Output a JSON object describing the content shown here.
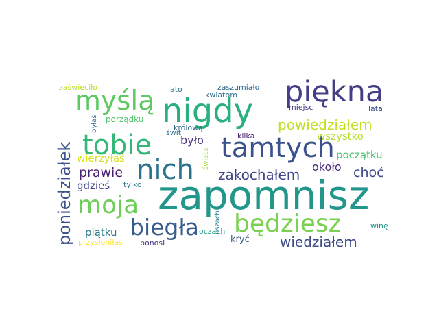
{
  "words": [
    {
      "text": "zapomnisz",
      "color": "#22968b"
    },
    {
      "text": "nigdy",
      "color": "#2ab07f"
    },
    {
      "text": "piękna",
      "color": "#433e85"
    },
    {
      "text": "tamtych",
      "color": "#3b518b"
    },
    {
      "text": "tobie",
      "color": "#35b779"
    },
    {
      "text": "nich",
      "color": "#2c728e"
    },
    {
      "text": "myślą",
      "color": "#5ec962"
    },
    {
      "text": "moja",
      "color": "#6ece58"
    },
    {
      "text": "będziesz",
      "color": "#7ad151"
    },
    {
      "text": "biegła",
      "color": "#365c8d"
    },
    {
      "text": "poniedziałek",
      "color": "#3b528b"
    },
    {
      "text": "powiedziałem",
      "color": "#c2df23"
    },
    {
      "text": "zakochałem",
      "color": "#404387"
    },
    {
      "text": "wiedziałem",
      "color": "#3e4a89"
    },
    {
      "text": "wszystko",
      "color": "#b5de2b"
    },
    {
      "text": "prawie",
      "color": "#481f70"
    },
    {
      "text": "choć",
      "color": "#3e4989"
    },
    {
      "text": "było",
      "color": "#472d7b"
    },
    {
      "text": "około",
      "color": "#482878"
    },
    {
      "text": "początku",
      "color": "#4ac16d"
    },
    {
      "text": "wierzyłaś",
      "color": "#d8e219"
    },
    {
      "text": "gdzieś",
      "color": "#3f4788"
    },
    {
      "text": "piątku",
      "color": "#2a788e"
    },
    {
      "text": "porządku",
      "color": "#4fc16b"
    },
    {
      "text": "zaświeciło",
      "color": "#bddf26"
    },
    {
      "text": "zaszumiało",
      "color": "#2f6c8e"
    },
    {
      "text": "lato",
      "color": "#2c738e"
    },
    {
      "text": "kwiatom",
      "color": "#2e6f8e"
    },
    {
      "text": "miejsc",
      "color": "#46337f"
    },
    {
      "text": "lata",
      "color": "#3a548c"
    },
    {
      "text": "świt",
      "color": "#2d708e"
    },
    {
      "text": "królową",
      "color": "#31688e"
    },
    {
      "text": "kilka",
      "color": "#482475"
    },
    {
      "text": "tylko",
      "color": "#297b8e"
    },
    {
      "text": "świata",
      "color": "#9fda3a"
    },
    {
      "text": "oczach",
      "color": "#20a386"
    },
    {
      "text": "uszach",
      "color": "#287c8e"
    },
    {
      "text": "kryć",
      "color": "#38598c"
    },
    {
      "text": "winę",
      "color": "#1f958b"
    },
    {
      "text": "przysłoniłaś",
      "color": "#fde725"
    },
    {
      "text": "ponosi",
      "color": "#46307e"
    },
    {
      "text": "byłaś",
      "color": "#33638d"
    }
  ]
}
